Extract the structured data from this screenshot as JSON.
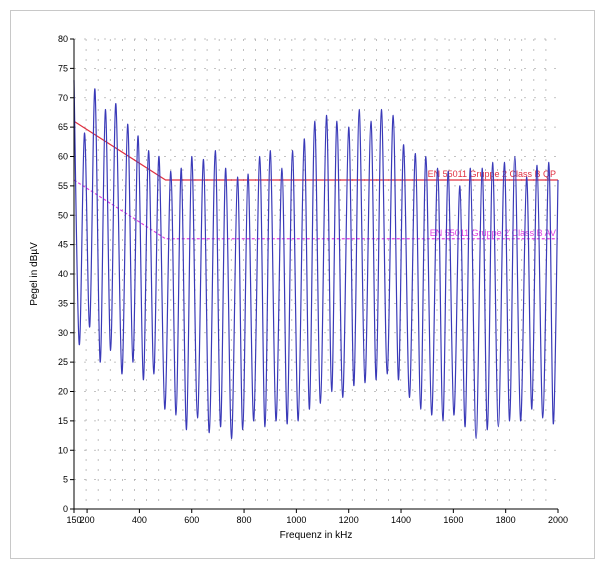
{
  "chart_data": {
    "type": "line",
    "title": "",
    "xlabel": "Frequenz in kHz",
    "ylabel": "Pegel in dBµV",
    "xlim": [
      150,
      2000
    ],
    "ylim": [
      0,
      80
    ],
    "x_ticks": [
      150,
      200,
      400,
      600,
      800,
      1000,
      1200,
      1400,
      1600,
      1800,
      2000
    ],
    "y_ticks": [
      0,
      5,
      10,
      15,
      20,
      25,
      30,
      35,
      40,
      45,
      50,
      55,
      60,
      65,
      70,
      75,
      80
    ],
    "grid": true,
    "limit_lines": [
      {
        "name": "EN 55011 Gruppe 2 Class B QP",
        "color": "#e03040",
        "style": "solid",
        "x": [
          150,
          500,
          2000
        ],
        "y": [
          66,
          56,
          56
        ]
      },
      {
        "name": "EN 55011 Gruppe 2 Class B AV",
        "color": "#e040e0",
        "style": "dashed",
        "x": [
          150,
          500,
          2000
        ],
        "y": [
          56,
          46,
          46
        ]
      }
    ],
    "series": [
      {
        "color": "#3a3ab8",
        "peak_x": [
          150,
          190,
          230,
          270,
          310,
          355,
          395,
          435,
          475,
          520,
          560,
          600,
          645,
          690,
          730,
          775,
          815,
          860,
          900,
          945,
          985,
          1030,
          1070,
          1115,
          1155,
          1200,
          1240,
          1285,
          1325,
          1370,
          1410,
          1455,
          1495,
          1540,
          1580,
          1625,
          1665,
          1710,
          1750,
          1795,
          1835,
          1880,
          1920,
          1965,
          2000
        ],
        "peak_y": [
          73,
          64,
          71.5,
          68,
          69,
          65.5,
          63.5,
          61,
          60,
          57.5,
          58,
          60,
          59.5,
          61,
          58,
          56.5,
          57,
          60,
          61,
          58,
          61,
          63,
          66,
          67,
          66,
          65,
          68,
          66,
          68,
          67,
          62,
          60.5,
          60,
          58,
          57.5,
          55,
          58,
          58,
          59,
          59,
          60,
          56.5,
          58.5,
          59,
          56
        ],
        "valley_x": [
          170,
          210,
          250,
          290,
          333,
          375,
          415,
          455,
          497,
          540,
          580,
          622,
          667,
          710,
          752,
          795,
          837,
          880,
          922,
          965,
          1007,
          1050,
          1092,
          1135,
          1177,
          1220,
          1262,
          1305,
          1347,
          1390,
          1432,
          1475,
          1517,
          1560,
          1602,
          1645,
          1687,
          1730,
          1772,
          1815,
          1857,
          1900,
          1942,
          1982
        ],
        "valley_y": [
          28,
          31,
          25,
          27,
          23,
          25,
          22,
          23,
          17,
          16,
          13.5,
          15.5,
          13,
          14,
          12,
          13.5,
          15,
          14,
          15,
          14.5,
          15,
          17,
          18,
          20,
          19,
          21,
          21.5,
          22,
          23,
          22,
          19,
          17,
          16,
          15,
          16,
          14,
          12,
          13.5,
          14,
          15,
          15,
          17,
          15.5,
          14.5
        ]
      }
    ]
  }
}
